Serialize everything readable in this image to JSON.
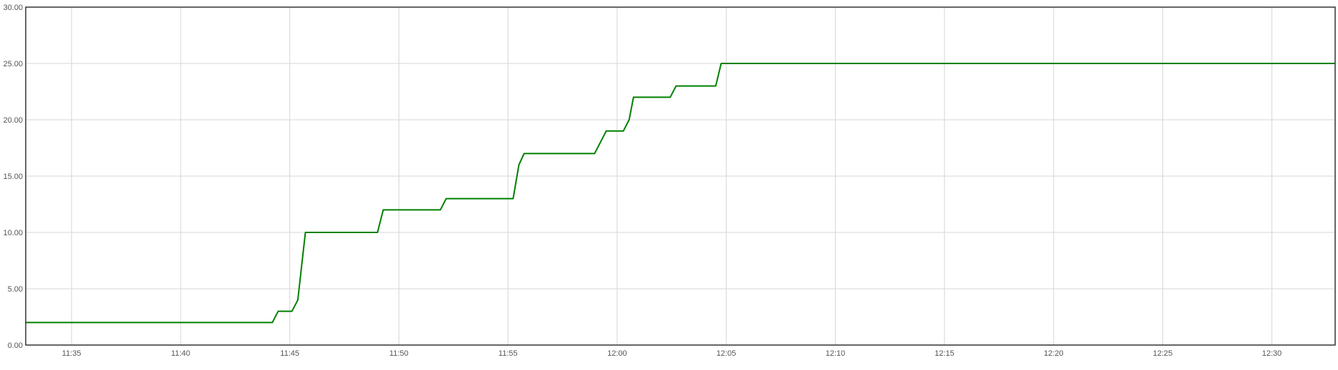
{
  "chart_data": {
    "type": "line",
    "title": "",
    "xlabel": "",
    "ylabel": "",
    "x_axis_type": "time",
    "x_range": [
      "11:32:54",
      "12:32:54"
    ],
    "ylim": [
      0,
      30
    ],
    "grid": true,
    "legend": "none",
    "colors": {
      "series": "#008000",
      "grid": "#d6d6d6",
      "frame": "#333333",
      "tick_text": "#545454"
    },
    "x_ticks": [
      "11:35",
      "11:40",
      "11:45",
      "11:50",
      "11:55",
      "12:00",
      "12:05",
      "12:10",
      "12:15",
      "12:20",
      "12:25",
      "12:30"
    ],
    "y_ticks": [
      {
        "value": 0,
        "label": "0.00"
      },
      {
        "value": 5,
        "label": "5.00"
      },
      {
        "value": 10,
        "label": "10.00"
      },
      {
        "value": 15,
        "label": "15.00"
      },
      {
        "value": 20,
        "label": "20.00"
      },
      {
        "value": 25,
        "label": "25.00"
      },
      {
        "value": 30,
        "label": "30.00"
      }
    ],
    "series": [
      {
        "points": [
          [
            "11:32:54",
            2
          ],
          [
            "11:44:12",
            2
          ],
          [
            "11:44:28",
            3
          ],
          [
            "11:45:06",
            3
          ],
          [
            "11:45:22",
            4
          ],
          [
            "11:45:43",
            10
          ],
          [
            "11:49:01",
            10
          ],
          [
            "11:49:17",
            12
          ],
          [
            "11:51:54",
            12
          ],
          [
            "11:52:10",
            13
          ],
          [
            "11:55:14",
            13
          ],
          [
            "11:55:30",
            16
          ],
          [
            "11:55:44",
            17
          ],
          [
            "11:58:58",
            17
          ],
          [
            "11:59:14",
            18
          ],
          [
            "11:59:30",
            19
          ],
          [
            "12:00:17",
            19
          ],
          [
            "12:00:33",
            20
          ],
          [
            "12:00:45",
            22
          ],
          [
            "12:02:26",
            22
          ],
          [
            "12:02:42",
            23
          ],
          [
            "12:04:31",
            23
          ],
          [
            "12:04:46",
            25
          ],
          [
            "12:32:54",
            25
          ]
        ]
      }
    ]
  }
}
